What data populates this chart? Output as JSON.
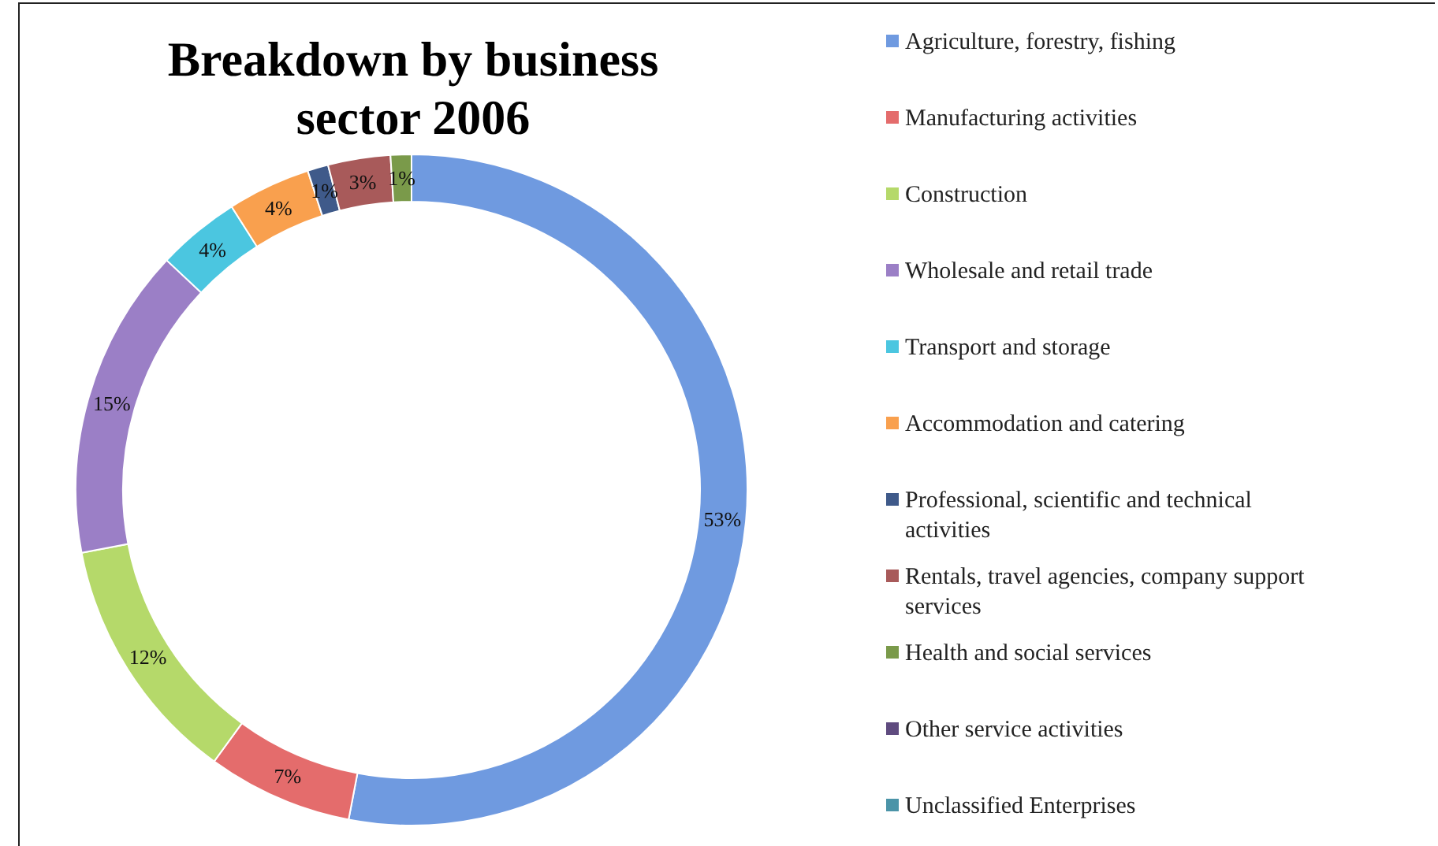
{
  "chart_data": {
    "type": "donut",
    "title": "Breakdown by business sector 2006",
    "categories": [
      "Agriculture, forestry, fishing",
      "Manufacturing activities",
      "Construction",
      "Wholesale and retail trade",
      "Transport and storage",
      "Accommodation and catering",
      "Professional, scientific and technical activities",
      "Rentals, travel agencies, company support services",
      "Health and social services",
      "Other service activities",
      "Unclassified Enterprises"
    ],
    "values": [
      53,
      7,
      12,
      15,
      4,
      4,
      1,
      3,
      1,
      0,
      0
    ],
    "value_labels": [
      "53%",
      "7%",
      "12%",
      "15%",
      "4%",
      "4%",
      "1%",
      "3%",
      "1%",
      null,
      null
    ],
    "colors": [
      "#6f9ae0",
      "#e46c6c",
      "#b5d96a",
      "#9b7fc6",
      "#4bc6e0",
      "#f9a04e",
      "#3f5a8a",
      "#a85a5a",
      "#7a9a4a",
      "#5f4b7f",
      "#4b94a8"
    ],
    "legend": "right"
  }
}
